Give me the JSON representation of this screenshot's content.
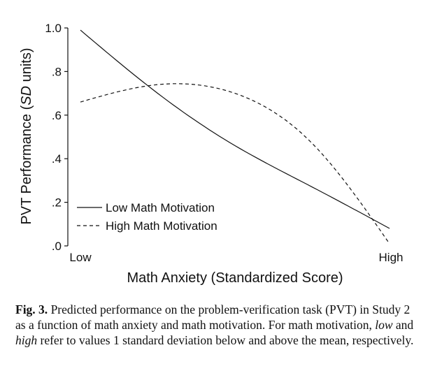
{
  "chart_data": {
    "type": "line",
    "xlabel": "Math Anxiety (Standardized Score)",
    "ylabel_prefix": "PVT Performance (",
    "ylabel_italic": "SD",
    "ylabel_suffix": " units)",
    "x_tick_labels": [
      "Low",
      "High"
    ],
    "ylim": [
      0,
      1.0
    ],
    "y_ticks": [
      {
        "value": 0.0,
        "label": ".0"
      },
      {
        "value": 0.2,
        "label": ".2"
      },
      {
        "value": 0.4,
        "label": ".4"
      },
      {
        "value": 0.6,
        "label": ".6"
      },
      {
        "value": 0.8,
        "label": ".8"
      },
      {
        "value": 1.0,
        "label": "1.0"
      }
    ],
    "grid": false,
    "legend_position": "bottom-left",
    "series": [
      {
        "name": "Low Math Motivation",
        "style": "solid",
        "x": [
          -1.0,
          -0.5,
          0.0,
          0.5,
          1.0
        ],
        "values": [
          0.99,
          0.7,
          0.46,
          0.27,
          0.08
        ]
      },
      {
        "name": "High Math Motivation",
        "style": "dashed",
        "x": [
          -1.0,
          -0.5,
          0.0,
          0.5,
          1.0
        ],
        "values": [
          0.66,
          0.74,
          0.7,
          0.47,
          0.01
        ]
      }
    ]
  },
  "caption": {
    "label": "Fig. 3.",
    "text_1": " Predicted performance on the problem-verification task (PVT) in Study 2 as a function of math anxiety and math motivation. For math motivation, ",
    "low_word": "low",
    "text_2": " and ",
    "high_word": "high",
    "text_3": " refer to values 1 standard deviation below and above the mean, respectively."
  }
}
